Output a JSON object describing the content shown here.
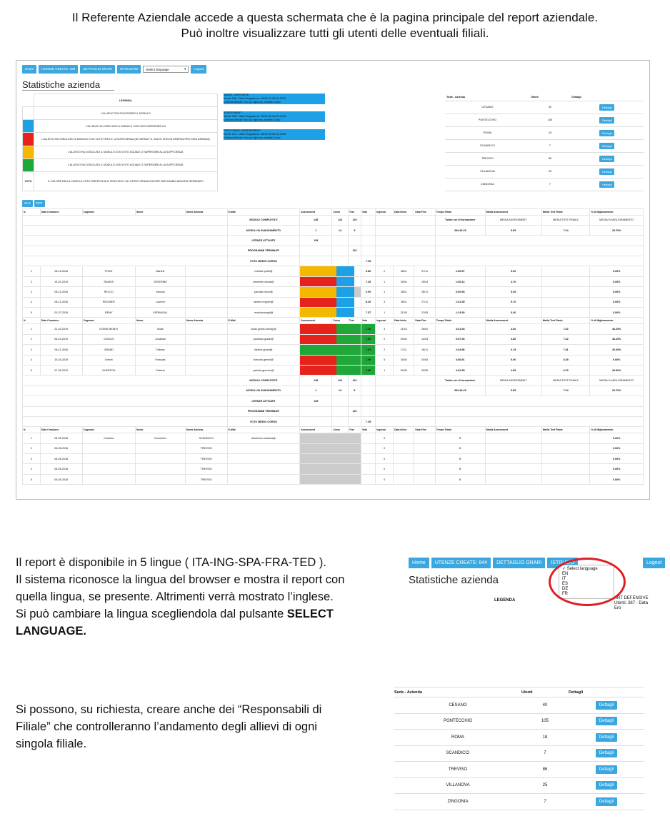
{
  "intro": {
    "line1": "Il Referente Aziendale accede a questa schermata che è la pagina principale del report aziendale.",
    "line2": "Può inoltre visualizzare tutti gli utenti delle eventuali filiali."
  },
  "screenshot": {
    "nav": [
      "Home",
      "UTENZE CREATE: 398",
      "DETTAGLIO ORARI",
      "ISTRUZIONI"
    ],
    "select_label": "Select language",
    "logout": "Logout",
    "title": "Statistiche azienda",
    "legend": {
      "header": "LEGENDA",
      "rows": [
        {
          "color": "#e6e6e6",
          "text": "L'ALLIEVO STA SVOLGENDO IL MODULO"
        },
        {
          "color": "#1ea0e6",
          "text": "L'ALLIEVO HA CONCLUSO IL MODULO CON VOTO INFERIORE A 5"
        },
        {
          "color": "#e5231b",
          "text": "L'ALLIEVO HA CONCLUSO IL MODULO CON VOTO TRA 5 E LA SUFFICIENZA (DI DEFAULT 6, SALVO SCELTA DIVERSA PER OGNI AZIENDA)"
        },
        {
          "color": "#f5b800",
          "text": "L'ALLIEVO HA CONCLUSO IL MODULO CON VOTO UGUALE O SUPERIORE ALLA SUFFICIENZA"
        },
        {
          "color": "#1fa73a",
          "text": "L'ALLIEVO HA CONCLUSO IL MODULO CON VOTO UGUALE O SUPERIORE ALLA SUFFICIENZA"
        }
      ],
      "voto_label": "VOTO",
      "voto_text": "IL COLORE DELLA CASELLA VOTO RISPECCHIA IL RISULTATO. GLI UTENTI SENZA COLORE NON HANNO ANCORA TERMINATO"
    },
    "blocks": [
      {
        "title": "SMART DEFENSIVE",
        "l1": "Utenti: 138 - Data Erogazione: 18:06:20 08-05-2018",
        "l2": "Optional Attivati: foto sul diploma, estratto Corsi"
      },
      {
        "title": "ASSESSMENT",
        "l1": "Utenti: 138 - Data Erogazione: 18:03:35 08-05-2018",
        "l2": "Optional Attivati: foto sul diploma, estratto Corsi"
      },
      {
        "title": "TEST FINALE: ASSESSMENT",
        "l1": "Utenti: 124 - Data Erogazione: 18:20:08 08-05-2018",
        "l2": "Optional Attivati: foto sul diploma, estratto Corsi"
      }
    ],
    "sedi_headers": [
      "Sede - Azienda",
      "Utenti",
      "Dettagli"
    ],
    "sedi": [
      {
        "name": "CESANO",
        "users": "40"
      },
      {
        "name": "PONTECCHIO",
        "users": "105"
      },
      {
        "name": "ROMA",
        "users": "18"
      },
      {
        "name": "SCANDICCI",
        "users": "7"
      },
      {
        "name": "TREVISO",
        "users": "86"
      },
      {
        "name": "VILLANOVA",
        "users": "25"
      },
      {
        "name": "ZINGONIA",
        "users": "7"
      }
    ],
    "dettagli": "Dettagli",
    "export": [
      "XLS",
      "PDF"
    ],
    "headers": [
      "N.",
      "Data Creazione",
      "Cognome",
      "Nome",
      "Nome Azienda",
      "E-Mail",
      "Assessment",
      "Corso",
      "Test",
      "Voto",
      "Ingressi",
      "Data Inizio",
      "Data Fine",
      "Tempo Totale",
      "Media Assessment",
      "Media Test Finale",
      "% di Miglioramento"
    ],
    "summary": {
      "completati": "MODULI COMPLETATI",
      "avanzamento": "MODULI IN AVANZAMENTO",
      "utenze": "UTENZE ATTIVATE",
      "programmi": "PROGRAMMI TERMINATI",
      "voto": "VOTO MEDIO CORSO",
      "c_vals": [
        "138",
        "124",
        "119"
      ],
      "a_vals": [
        "1",
        "14",
        "5"
      ],
      "u_val": "139",
      "p_val": "119",
      "v_val": "7.35",
      "ore_label": "Totale ore di formazione",
      "ore_val": "354:43:25",
      "media_ass_label": "MEDIA ASSESSMENT",
      "media_test_label": "MEDIA TEST FINALE",
      "migl_label": "MEDIA % MIGLIORAMENTO",
      "media_ass": "5.85",
      "media_test": "7.24",
      "migl": "23.76%"
    },
    "group1": [
      {
        "n": "1",
        "d": "06-11-2018",
        "c": "POINT",
        "nm": "Martine",
        "em": "martine.point@",
        "bars": [
          "y",
          "b",
          ""
        ],
        "v": "5.86",
        "i": "2",
        "di": "08/11",
        "df": "07/11",
        "t": "1:35:57",
        "ma": "5.60",
        "mt": "",
        "p": "0.00%"
      },
      {
        "n": "2",
        "d": "16-04-2019",
        "c": "RAMOS",
        "nm": "SEVERINE",
        "em": "severine.ramos@",
        "bars": [
          "r",
          "b",
          ""
        ],
        "v": "7.45",
        "i": "1",
        "di": "25/04",
        "df": "25/04",
        "t": "1:06:12",
        "ma": "4.70",
        "mt": "",
        "p": "0.00%"
      },
      {
        "n": "3",
        "d": "06-11-2018",
        "c": "RECCO",
        "nm": "Yannick",
        "em": "yannick.recco@",
        "bars": [
          "y",
          "b",
          "gr"
        ],
        "v": "0.00",
        "i": "1",
        "di": "28/11",
        "df": "28/11",
        "t": "0:20:54",
        "ma": "5.45",
        "mt": "",
        "p": "0.00%"
      },
      {
        "n": "4",
        "d": "06-11-2018",
        "c": "REGNIER",
        "nm": "Laurent",
        "em": "laurent.regnier@",
        "bars": [
          "r",
          "b",
          ""
        ],
        "v": "8.40",
        "i": "3",
        "di": "28/11",
        "df": "27/11",
        "t": "1:41:35",
        "ma": "5.70",
        "mt": "",
        "p": "0.00%"
      },
      {
        "n": "5",
        "d": "03-07-2018",
        "c": "REMY",
        "nm": "KERANGAL",
        "em": "remy.kerangal@",
        "bars": [
          "y",
          "b",
          ""
        ],
        "v": "7.57",
        "i": "1",
        "di": "21/05",
        "df": "21/05",
        "t": "1:13:30",
        "ma": "5.00",
        "mt": "",
        "p": "0.00%"
      }
    ],
    "group2": [
      {
        "n": "1",
        "d": "21-02-2019",
        "c": "GOMIS MENDY",
        "nm": "Scale",
        "em": "scale.gomis-mendy@",
        "bars": [
          "r",
          "g",
          "g"
        ],
        "v": "7.20",
        "i": "3",
        "di": "21/02",
        "df": "26/02",
        "t": "4:31:34",
        "ma": "4.60",
        "mt": "7.02",
        "p": "46.25%"
      },
      {
        "n": "2",
        "d": "06-03-2019",
        "c": "GOSLIN",
        "nm": "Jonathan",
        "em": "jonathan.goslin@",
        "bars": [
          "r",
          "g",
          "g"
        ],
        "v": "7.06",
        "i": "2",
        "di": "09/03",
        "df": "13/03",
        "t": "0:57:06",
        "ma": "4.80",
        "mt": "7.02",
        "p": "46.25%"
      },
      {
        "n": "3",
        "d": "06-11-2018",
        "c": "GRAND",
        "nm": "Fabrice",
        "em": "fabrice.grand@",
        "bars": [
          "g",
          "g",
          "g"
        ],
        "v": "7.81",
        "i": "2",
        "di": "17/11",
        "df": "18/11",
        "t": "2:44:56",
        "ma": "6.15",
        "mt": "7.81",
        "p": "26.00%"
      },
      {
        "n": "4",
        "d": "15-04-2019",
        "c": "Grévin",
        "nm": "François",
        "em": "francois.grevin@",
        "bars": [
          "r",
          "g",
          "g"
        ],
        "v": "7.09",
        "i": "5",
        "di": "16/04",
        "df": "24/04",
        "t": "3:36:51",
        "ma": "5.00",
        "mt": "5.45",
        "p": "9.00%"
      },
      {
        "n": "5",
        "d": "07-05-2019",
        "c": "GUERTON",
        "nm": "Patricia",
        "em": "patricia.guerton@",
        "bars": [
          "r",
          "g",
          "g"
        ],
        "v": "6.80",
        "i": "1",
        "di": "09/05",
        "df": "09/05",
        "t": "4:02:55",
        "ma": "4.85",
        "mt": "6.30",
        "p": "29.90%"
      }
    ],
    "group3": [
      {
        "n": "1",
        "d": "08-05-2018",
        "c": "Caramia",
        "nm": "Domenico",
        "az": "SCANDICCI",
        "em": "domenico.caramia@",
        "i": "0",
        "t": "0",
        "p": "0.00%"
      },
      {
        "n": "2",
        "d": "08-05-2018",
        "c": "",
        "nm": "",
        "az": "TREVISO",
        "em": "",
        "i": "0",
        "t": "0",
        "p": "0.00%"
      },
      {
        "n": "3",
        "d": "08-05-2018",
        "c": "",
        "nm": "",
        "az": "TREVISO",
        "em": "",
        "i": "0",
        "t": "0",
        "p": "0.00%"
      },
      {
        "n": "4",
        "d": "08-05-2018",
        "c": "",
        "nm": "",
        "az": "TREVISO",
        "em": "",
        "i": "0",
        "t": "0",
        "p": "0.00%"
      },
      {
        "n": "5",
        "d": "08-05-2018",
        "c": "",
        "nm": "",
        "az": "TREVISO",
        "em": "",
        "i": "0",
        "t": "0",
        "p": "0.00%"
      }
    ]
  },
  "section2": {
    "l1": "Il report è disponibile in 5 lingue ( ITA-ING-SPA-FRA-TED ).",
    "l2": "Il sistema riconosce la lingua del browser e mostra il report con",
    "l3": "quella lingua, se presente.  Altrimenti verrà mostrato l’inglese.",
    "l4": "Si può cambiare la lingua scegliendola dal pulsante ",
    "l4b": "SELECT",
    "l5b": "LANGUAGE."
  },
  "zoom": {
    "nav": [
      "Home",
      "UTENZE CREATE: 844",
      "DETTAGLIO ORARI",
      "ISTRUZIO"
    ],
    "logout": "Logout",
    "title": "Statistiche azienda",
    "legenda": "LEGENDA",
    "options": [
      "✓ Select language",
      "EN",
      "IT",
      "ES",
      "DE",
      "FR"
    ],
    "side1": "ART DEFENSIVE",
    "side2": "Utenti: 387 - Data Ero"
  },
  "section3": {
    "l1": "Si possono, su richiesta, creare anche dei “Responsabili di",
    "l2": "Filiale” che controlleranno l’andamento degli allievi di ogni",
    "l3": "singola filiale."
  }
}
